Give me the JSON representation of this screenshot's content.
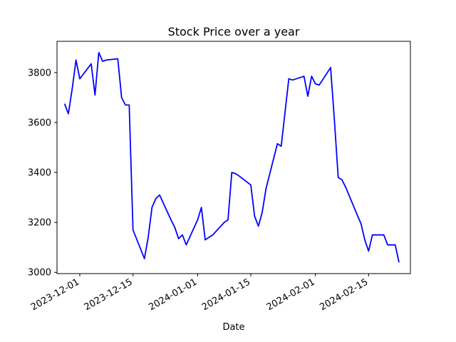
{
  "chart_data": {
    "type": "line",
    "title": "Stock Price over a year",
    "xlabel": "Date",
    "ylabel": "",
    "x_type": "date",
    "xlim": [
      "2023-11-25",
      "2024-02-26"
    ],
    "ylim": [
      2995,
      3925
    ],
    "xticks": [
      "2023-12-01",
      "2023-12-15",
      "2024-01-01",
      "2024-01-15",
      "2024-02-01",
      "2024-02-15"
    ],
    "yticks": [
      3000,
      3200,
      3400,
      3600,
      3800
    ],
    "grid": false,
    "color": "#0000ff",
    "series": [
      {
        "x": [
          "2023-11-27",
          "2023-11-28",
          "2023-11-29",
          "2023-11-30",
          "2023-12-01",
          "2023-12-04",
          "2023-12-05",
          "2023-12-06",
          "2023-12-07",
          "2023-12-08",
          "2023-12-11",
          "2023-12-12",
          "2023-12-13",
          "2023-12-14",
          "2023-12-15",
          "2023-12-18",
          "2023-12-19",
          "2023-12-20",
          "2023-12-21",
          "2023-12-22",
          "2023-12-25",
          "2023-12-26",
          "2023-12-27",
          "2023-12-28",
          "2023-12-29",
          "2024-01-01",
          "2024-01-02",
          "2024-01-03",
          "2024-01-04",
          "2024-01-05",
          "2024-01-08",
          "2024-01-09",
          "2024-01-10",
          "2024-01-11",
          "2024-01-12",
          "2024-01-15",
          "2024-01-16",
          "2024-01-17",
          "2024-01-18",
          "2024-01-19",
          "2024-01-22",
          "2024-01-23",
          "2024-01-24",
          "2024-01-25",
          "2024-01-26",
          "2024-01-29",
          "2024-01-30",
          "2024-01-31",
          "2024-02-01",
          "2024-02-02",
          "2024-02-05",
          "2024-02-06",
          "2024-02-07",
          "2024-02-08",
          "2024-02-09",
          "2024-02-12",
          "2024-02-13",
          "2024-02-14",
          "2024-02-15",
          "2024-02-16",
          "2024-02-19",
          "2024-02-20",
          "2024-02-21",
          "2024-02-22",
          "2024-02-23"
        ],
        "values": [
          3675,
          3635,
          3735,
          3850,
          3775,
          3835,
          3710,
          3880,
          3845,
          3850,
          3855,
          3700,
          3670,
          3670,
          3170,
          3055,
          3140,
          3260,
          3295,
          3310,
          3210,
          3180,
          3135,
          3150,
          3110,
          3210,
          3260,
          3130,
          3140,
          3150,
          3200,
          3210,
          3400,
          3395,
          3385,
          3350,
          3225,
          3185,
          3240,
          3335,
          3515,
          3505,
          3640,
          3775,
          3770,
          3785,
          3705,
          3785,
          3755,
          3750,
          3820,
          3610,
          3380,
          3370,
          3340,
          3230,
          3195,
          3130,
          3085,
          3150,
          3150,
          3110,
          3110,
          3110,
          3040
        ]
      }
    ]
  }
}
